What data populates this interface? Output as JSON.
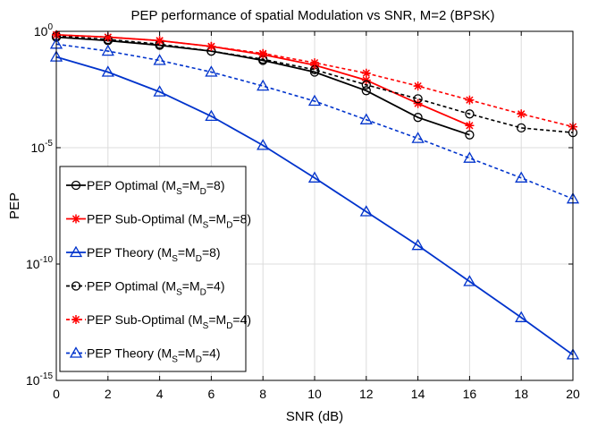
{
  "chart_data": {
    "type": "line",
    "title": "PEP performance of spatial Modulation vs SNR, M=2 (BPSK)",
    "xlabel": "SNR (dB)",
    "ylabel": "PEP",
    "xlim": [
      0,
      20
    ],
    "ylim_log10": [
      -15,
      0
    ],
    "y_scale": "log",
    "x_ticks": [
      "0",
      "2",
      "4",
      "6",
      "8",
      "10",
      "12",
      "14",
      "16",
      "18",
      "20"
    ],
    "y_ticks": [
      {
        "base": "10",
        "exp": "0",
        "value": 0
      },
      {
        "base": "10",
        "exp": "-5",
        "value": -5
      },
      {
        "base": "10",
        "exp": "-10",
        "value": -10
      },
      {
        "base": "10",
        "exp": "-15",
        "value": -15
      }
    ],
    "grid": true,
    "legend_position": "left",
    "series": [
      {
        "name": "PEP Optimal (M",
        "label_sub1": "S",
        "label_mid": "=M",
        "label_sub2": "D",
        "label_end": "=8)",
        "color": "#000000",
        "dash": false,
        "marker": "circle",
        "x": [
          0,
          2,
          4,
          6,
          8,
          10,
          12,
          14,
          16
        ],
        "y_log10": [
          -0.25,
          -0.4,
          -0.6,
          -0.85,
          -1.25,
          -1.75,
          -2.55,
          -3.7,
          -4.45
        ]
      },
      {
        "name": "PEP Sub-Optimal (M",
        "label_sub1": "S",
        "label_mid": "=M",
        "label_sub2": "D",
        "label_end": "=8)",
        "color": "#ff0000",
        "dash": false,
        "marker": "star",
        "x": [
          0,
          2,
          4,
          6,
          8,
          10,
          12,
          14,
          16
        ],
        "y_log10": [
          -0.15,
          -0.25,
          -0.4,
          -0.65,
          -1.0,
          -1.45,
          -2.1,
          -3.1,
          -4.05
        ]
      },
      {
        "name": "PEP Theory (M",
        "label_sub1": "S",
        "label_mid": "=M",
        "label_sub2": "D",
        "label_end": "=8)",
        "color": "#0033cc",
        "dash": false,
        "marker": "triangle",
        "x": [
          0,
          2,
          4,
          6,
          8,
          10,
          12,
          14,
          16,
          18,
          20
        ],
        "y_log10": [
          -1.1,
          -1.75,
          -2.6,
          -3.65,
          -4.9,
          -6.3,
          -7.75,
          -9.2,
          -10.75,
          -12.3,
          -13.9
        ]
      },
      {
        "name": "PEP Optimal (M",
        "label_sub1": "S",
        "label_mid": "=M",
        "label_sub2": "D",
        "label_end": "=4)",
        "color": "#000000",
        "dash": true,
        "marker": "circle",
        "x": [
          0,
          2,
          4,
          6,
          8,
          10,
          12,
          14,
          16,
          18,
          20
        ],
        "y_log10": [
          -0.2,
          -0.35,
          -0.55,
          -0.85,
          -1.2,
          -1.65,
          -2.3,
          -2.9,
          -3.55,
          -4.15,
          -4.35
        ]
      },
      {
        "name": "PEP Sub-Optimal (M",
        "label_sub1": "S",
        "label_mid": "=M",
        "label_sub2": "D",
        "label_end": "=4)",
        "color": "#ff0000",
        "dash": true,
        "marker": "star",
        "x": [
          0,
          2,
          4,
          6,
          8,
          10,
          12,
          14,
          16,
          18,
          20
        ],
        "y_log10": [
          -0.15,
          -0.25,
          -0.4,
          -0.65,
          -0.95,
          -1.35,
          -1.8,
          -2.35,
          -2.95,
          -3.55,
          -4.1
        ]
      },
      {
        "name": "PEP Theory (M",
        "label_sub1": "S",
        "label_mid": "=M",
        "label_sub2": "D",
        "label_end": "=4)",
        "color": "#0033cc",
        "dash": true,
        "marker": "triangle",
        "x": [
          0,
          2,
          4,
          6,
          8,
          10,
          12,
          14,
          16,
          18,
          20
        ],
        "y_log10": [
          -0.55,
          -0.85,
          -1.25,
          -1.75,
          -2.35,
          -3.0,
          -3.8,
          -4.6,
          -5.45,
          -6.3,
          -7.2
        ]
      }
    ]
  }
}
